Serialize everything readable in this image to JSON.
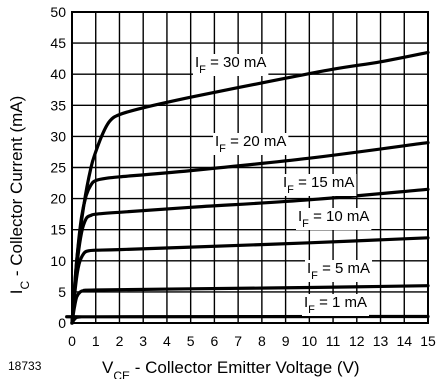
{
  "chart_data": {
    "type": "line",
    "figure_id": "18733",
    "xlabel": {
      "main": "V",
      "sub": "CE",
      "rest": " - Collector Emitter Voltage (V)"
    },
    "ylabel": {
      "main": "I",
      "sub": "C",
      "rest": " - Collector Current (mA)"
    },
    "xlim": [
      0,
      15
    ],
    "ylim": [
      0,
      50
    ],
    "x_ticks": [
      "0",
      "1",
      "2",
      "3",
      "4",
      "5",
      "6",
      "7",
      "8",
      "9",
      "10",
      "11",
      "12",
      "13",
      "14",
      "15"
    ],
    "y_ticks": [
      "0",
      "5",
      "10",
      "15",
      "20",
      "25",
      "30",
      "35",
      "40",
      "45",
      "50"
    ],
    "grid": true,
    "series": [
      {
        "label_main": "I",
        "label_sub": "F",
        "label_rest": " = 30 mA",
        "x": [
          0,
          0.2,
          0.5,
          0.8,
          1.0,
          1.3,
          1.6,
          2.0,
          3,
          5,
          8,
          11,
          13,
          15
        ],
        "y": [
          0,
          10,
          19,
          25,
          27.5,
          30.5,
          32.5,
          33.5,
          34.6,
          36.3,
          38.6,
          40.8,
          42,
          43.5
        ]
      },
      {
        "label_main": "I",
        "label_sub": "F",
        "label_rest": " = 20 mA",
        "x": [
          0,
          0.2,
          0.4,
          0.6,
          0.8,
          1.0,
          1.5,
          2,
          5,
          10,
          15
        ],
        "y": [
          0,
          10,
          17,
          20.5,
          22.2,
          22.9,
          23.3,
          23.5,
          24.5,
          26.5,
          29
        ]
      },
      {
        "label_main": "I",
        "label_sub": "F",
        "label_rest": " = 15 mA",
        "x": [
          0,
          0.2,
          0.4,
          0.6,
          0.8,
          1.0,
          2,
          5,
          10,
          15
        ],
        "y": [
          0,
          9,
          14.5,
          16.8,
          17.3,
          17.5,
          17.8,
          18.6,
          19.8,
          21.5
        ]
      },
      {
        "label_main": "I",
        "label_sub": "F",
        "label_rest": " = 10 mA",
        "x": [
          0,
          0.15,
          0.3,
          0.5,
          0.7,
          1.0,
          2,
          5,
          10,
          15
        ],
        "y": [
          0,
          6,
          9.5,
          11.2,
          11.6,
          11.7,
          11.8,
          12.2,
          12.9,
          13.7
        ]
      },
      {
        "label_main": "I",
        "label_sub": "F",
        "label_rest": " = 5 mA",
        "x": [
          0,
          0.1,
          0.2,
          0.35,
          0.5,
          1.0,
          5,
          10,
          15
        ],
        "y": [
          0,
          2.5,
          4.2,
          5.0,
          5.2,
          5.3,
          5.5,
          5.7,
          6.0
        ]
      },
      {
        "label_main": "I",
        "label_sub": "F",
        "label_rest": " = 1 mA",
        "x": [
          0,
          0.1,
          0.2,
          0.4,
          1,
          15
        ],
        "y": [
          0,
          0.6,
          0.9,
          1.0,
          1.0,
          1.05
        ]
      }
    ]
  }
}
